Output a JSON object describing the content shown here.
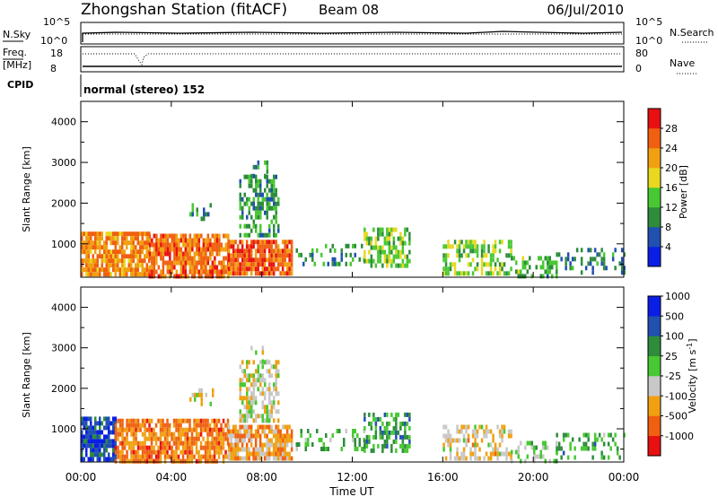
{
  "header": {
    "title": "Zhongshan Station (fitACF)",
    "beam": "Beam 08",
    "date": "06/Jul/2010"
  },
  "status_panel": {
    "left_labels": {
      "nsky": "N.Sky",
      "freq": "Freq.",
      "freq_unit": "[MHz]",
      "cpid": "CPID"
    },
    "right_labels": {
      "nsearch": "N.Search",
      "nave": "Nave"
    },
    "left_ticks": {
      "sky_high": "10^5",
      "sky_low": "10^0",
      "freq_high": "18",
      "freq_low": "8"
    },
    "right_ticks": {
      "search_high": "10^5",
      "search_low": "10^0",
      "nave_high": "80",
      "nave_low": "0"
    },
    "cpid_text": "normal (stereo) 152"
  },
  "colors": {
    "power": [
      "#0a1ee6",
      "#2050b0",
      "#2e8c3c",
      "#48c832",
      "#e8d820",
      "#f0a010",
      "#f06010",
      "#e81010"
    ],
    "velocity": [
      "#e81010",
      "#f06010",
      "#f0a010",
      "#c8c8c8",
      "#48c832",
      "#2e8c3c",
      "#2050b0",
      "#0a1ee6"
    ],
    "axis": "#000000"
  },
  "chart_data": [
    {
      "type": "heatmap",
      "title": "Power",
      "xlabel": "",
      "ylabel": "Slant Range [km]",
      "xlim": [
        0,
        24
      ],
      "ylim": [
        180,
        4500
      ],
      "x_ticks": [
        "00:00",
        "04:00",
        "08:00",
        "12:00",
        "16:00",
        "20:00",
        "00:00"
      ],
      "y_ticks": [
        "1000",
        "2000",
        "3000",
        "4000"
      ],
      "colorbar": {
        "label": "Power [dB]",
        "ticks": [
          "4",
          "8",
          "12",
          "16",
          "20",
          "24",
          "28"
        ],
        "range": [
          0,
          32
        ]
      },
      "regions": [
        {
          "x": [
            0.0,
            3.0
          ],
          "y": [
            200,
            1300
          ],
          "level": 5.4,
          "density": 0.85
        },
        {
          "x": [
            3.0,
            6.5
          ],
          "y": [
            200,
            1250
          ],
          "level": 5.8,
          "density": 0.8
        },
        {
          "x": [
            6.5,
            9.3
          ],
          "y": [
            300,
            1100
          ],
          "level": 6.0,
          "density": 0.85
        },
        {
          "x": [
            7.0,
            8.7
          ],
          "y": [
            1200,
            2700
          ],
          "level": 2.2,
          "density": 0.55
        },
        {
          "x": [
            7.5,
            8.2
          ],
          "y": [
            2700,
            3050
          ],
          "level": 2.0,
          "density": 0.3
        },
        {
          "x": [
            4.8,
            5.8
          ],
          "y": [
            1600,
            2000
          ],
          "level": 1.6,
          "density": 0.3
        },
        {
          "x": [
            9.5,
            12.5
          ],
          "y": [
            500,
            1000
          ],
          "level": 2.0,
          "density": 0.3
        },
        {
          "x": [
            12.5,
            14.5
          ],
          "y": [
            500,
            1400
          ],
          "level": 3.0,
          "density": 0.55
        },
        {
          "x": [
            16.0,
            19.0
          ],
          "y": [
            250,
            1100
          ],
          "level": 3.2,
          "density": 0.5
        },
        {
          "x": [
            19.0,
            21.0
          ],
          "y": [
            250,
            700
          ],
          "level": 2.5,
          "density": 0.4
        },
        {
          "x": [
            21.0,
            24.0
          ],
          "y": [
            250,
            900
          ],
          "level": 1.6,
          "density": 0.25
        }
      ]
    },
    {
      "type": "heatmap",
      "title": "Velocity",
      "xlabel": "Time UT",
      "ylabel": "Slant Range [km]",
      "xlim": [
        0,
        24
      ],
      "ylim": [
        180,
        4500
      ],
      "x_ticks": [
        "00:00",
        "04:00",
        "08:00",
        "12:00",
        "16:00",
        "20:00",
        "00:00"
      ],
      "y_ticks": [
        "1000",
        "2000",
        "3000",
        "4000"
      ],
      "colorbar": {
        "label": "Velocity [m s^-1]",
        "ticks": [
          "-1000",
          "-500",
          "-100",
          "-25",
          "25",
          "100",
          "500",
          "1000"
        ]
      },
      "regions": [
        {
          "x": [
            0.0,
            1.5
          ],
          "y": [
            200,
            1300
          ],
          "level": 6.2,
          "density": 0.8
        },
        {
          "x": [
            1.5,
            6.5
          ],
          "y": [
            200,
            1250
          ],
          "level": 1.4,
          "density": 0.8
        },
        {
          "x": [
            6.5,
            9.3
          ],
          "y": [
            300,
            1100
          ],
          "level": 2.0,
          "density": 0.8
        },
        {
          "x": [
            7.0,
            8.7
          ],
          "y": [
            1200,
            2700
          ],
          "level": 3.0,
          "density": 0.6
        },
        {
          "x": [
            7.5,
            8.2
          ],
          "y": [
            2700,
            3050
          ],
          "level": 3.0,
          "density": 0.3
        },
        {
          "x": [
            4.8,
            5.8
          ],
          "y": [
            1600,
            2000
          ],
          "level": 3.0,
          "density": 0.3
        },
        {
          "x": [
            9.5,
            12.5
          ],
          "y": [
            500,
            1000
          ],
          "level": 4.2,
          "density": 0.3
        },
        {
          "x": [
            12.5,
            14.5
          ],
          "y": [
            500,
            1400
          ],
          "level": 4.6,
          "density": 0.55
        },
        {
          "x": [
            16.0,
            19.0
          ],
          "y": [
            250,
            1100
          ],
          "level": 2.5,
          "density": 0.5
        },
        {
          "x": [
            19.0,
            21.0
          ],
          "y": [
            250,
            700
          ],
          "level": 3.6,
          "density": 0.4
        },
        {
          "x": [
            21.0,
            24.0
          ],
          "y": [
            250,
            900
          ],
          "level": 4.5,
          "density": 0.25
        }
      ]
    }
  ]
}
